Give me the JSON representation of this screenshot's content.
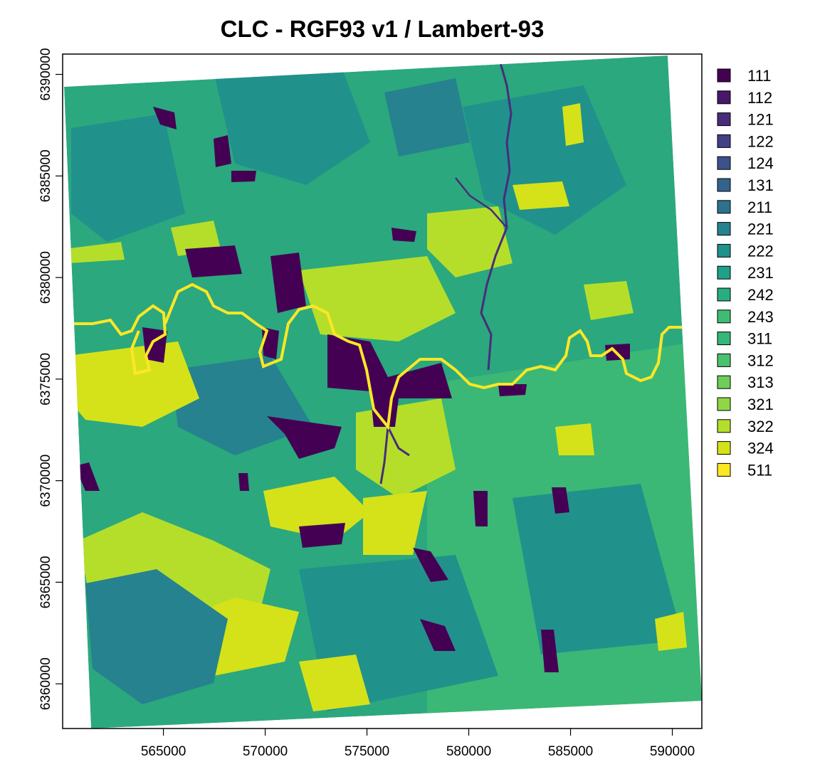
{
  "title": "CLC - RGF93 v1 / Lambert-93",
  "x_axis": {
    "ticks": [
      {
        "value": 565000,
        "label": "565000"
      },
      {
        "value": 570000,
        "label": "570000"
      },
      {
        "value": 575000,
        "label": "575000"
      },
      {
        "value": 580000,
        "label": "580000"
      },
      {
        "value": 585000,
        "label": "585000"
      },
      {
        "value": 590000,
        "label": "590000"
      }
    ]
  },
  "y_axis": {
    "ticks": [
      {
        "value": 6360000,
        "label": "6360000"
      },
      {
        "value": 6365000,
        "label": "6365000"
      },
      {
        "value": 6370000,
        "label": "6370000"
      },
      {
        "value": 6375000,
        "label": "6375000"
      },
      {
        "value": 6380000,
        "label": "6380000"
      },
      {
        "value": 6385000,
        "label": "6385000"
      },
      {
        "value": 6390000,
        "label": "6390000"
      }
    ]
  },
  "extent": {
    "xmin": 560050,
    "xmax": 591450,
    "ymin": 6357800,
    "ymax": 6391000
  },
  "legend": {
    "placement": "right",
    "items": [
      {
        "code": "111",
        "color": "#440154"
      },
      {
        "code": "112",
        "color": "#48186a"
      },
      {
        "code": "121",
        "color": "#472d7b"
      },
      {
        "code": "122",
        "color": "#424086"
      },
      {
        "code": "124",
        "color": "#3b528b"
      },
      {
        "code": "131",
        "color": "#33638d"
      },
      {
        "code": "211",
        "color": "#2c728e"
      },
      {
        "code": "221",
        "color": "#26828e"
      },
      {
        "code": "222",
        "color": "#21918c"
      },
      {
        "code": "231",
        "color": "#1fa088"
      },
      {
        "code": "242",
        "color": "#28ae80"
      },
      {
        "code": "243",
        "color": "#3fbc73"
      },
      {
        "code": "311",
        "color": "#35b779"
      },
      {
        "code": "312",
        "color": "#4ac16d"
      },
      {
        "code": "313",
        "color": "#6ece58"
      },
      {
        "code": "321",
        "color": "#8fd744"
      },
      {
        "code": "322",
        "color": "#b5de2b"
      },
      {
        "code": "324",
        "color": "#d5e21a"
      },
      {
        "code": "511",
        "color": "#fde725"
      }
    ]
  },
  "map_colors": {
    "base_forest": "#2ba87e",
    "dark_forest": "#21918c",
    "coniferous": "#3bb875",
    "teal_agri": "#26828e",
    "grassland": "#b5de2b",
    "shrub": "#d5e21a",
    "urban": "#440154",
    "river": "#fde725",
    "stream": "#472d7b"
  }
}
